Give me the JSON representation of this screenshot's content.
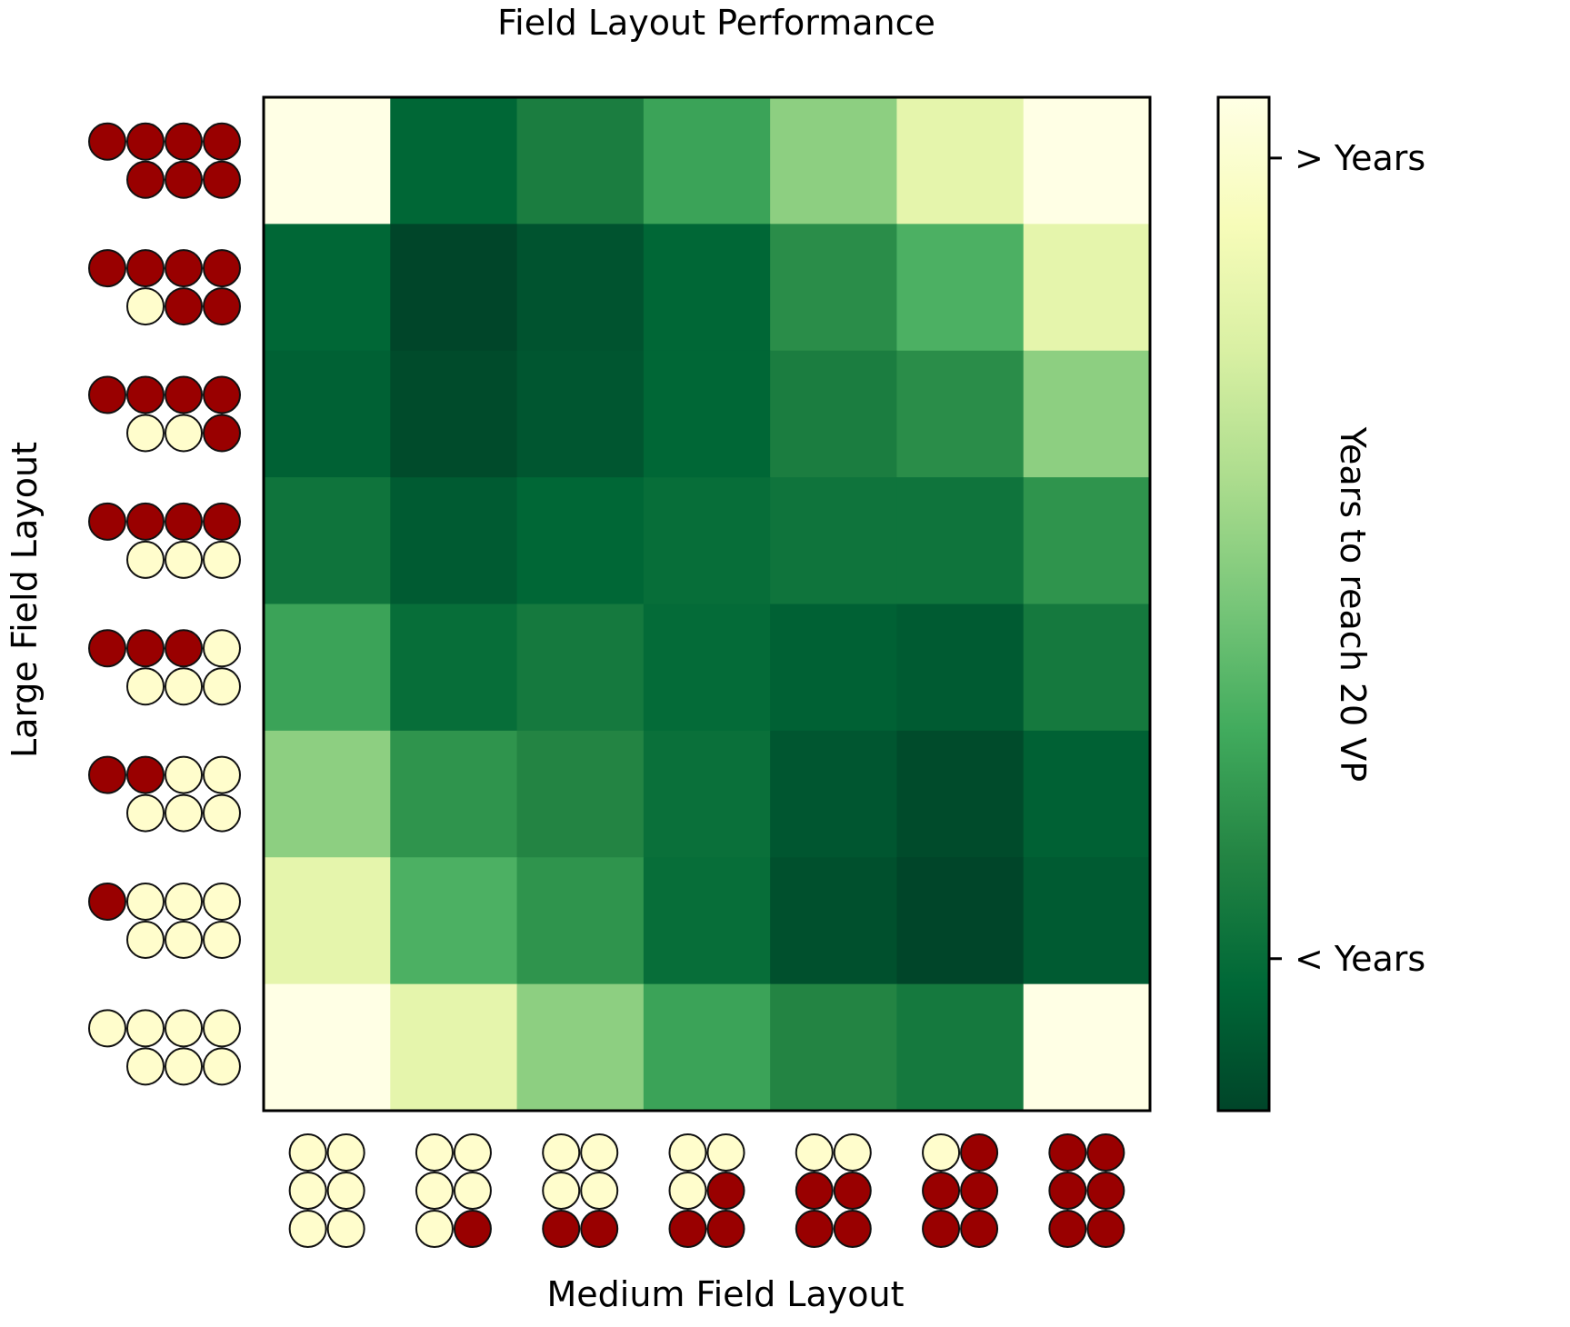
{
  "chart_data": {
    "type": "heatmap",
    "title": "Field Layout Performance",
    "xlabel": "Medium Field Layout",
    "ylabel": "Large Field Layout",
    "colorbar": {
      "label": "Years to reach 20 VP",
      "ticks": [
        "> Years",
        "< Years"
      ],
      "tick_values": [
        0.94,
        0.15
      ],
      "colormap": [
        "#004529",
        "#006837",
        "#238443",
        "#41ab5d",
        "#78c679",
        "#addd8e",
        "#d9f0a3",
        "#f7fcb9",
        "#ffffe5"
      ]
    },
    "x_categories": [
      {
        "filled": 0,
        "total": 6
      },
      {
        "filled": 1,
        "total": 6
      },
      {
        "filled": 2,
        "total": 6
      },
      {
        "filled": 3,
        "total": 6
      },
      {
        "filled": 4,
        "total": 6
      },
      {
        "filled": 5,
        "total": 6
      },
      {
        "filled": 6,
        "total": 6
      }
    ],
    "y_categories": [
      {
        "filled": 7,
        "total": 7
      },
      {
        "filled": 6,
        "total": 7
      },
      {
        "filled": 5,
        "total": 7
      },
      {
        "filled": 4,
        "total": 7
      },
      {
        "filled": 3,
        "total": 7
      },
      {
        "filled": 2,
        "total": 7
      },
      {
        "filled": 1,
        "total": 7
      },
      {
        "filled": 0,
        "total": 7
      }
    ],
    "values": [
      [
        1.0,
        0.12,
        0.22,
        0.35,
        0.55,
        0.8,
        1.0
      ],
      [
        0.12,
        0.0,
        0.05,
        0.12,
        0.28,
        0.4,
        0.8
      ],
      [
        0.1,
        0.02,
        0.06,
        0.12,
        0.22,
        0.28,
        0.55
      ],
      [
        0.18,
        0.08,
        0.12,
        0.15,
        0.18,
        0.18,
        0.3
      ],
      [
        0.35,
        0.15,
        0.2,
        0.14,
        0.1,
        0.08,
        0.2
      ],
      [
        0.55,
        0.3,
        0.25,
        0.16,
        0.06,
        0.02,
        0.1
      ],
      [
        0.8,
        0.4,
        0.3,
        0.15,
        0.04,
        0.0,
        0.08
      ],
      [
        1.0,
        0.8,
        0.55,
        0.35,
        0.25,
        0.2,
        1.0
      ]
    ],
    "grid": false
  },
  "colors": {
    "token_filled": "#990000",
    "token_empty": "#fffdcc",
    "token_stroke": "#111111"
  }
}
